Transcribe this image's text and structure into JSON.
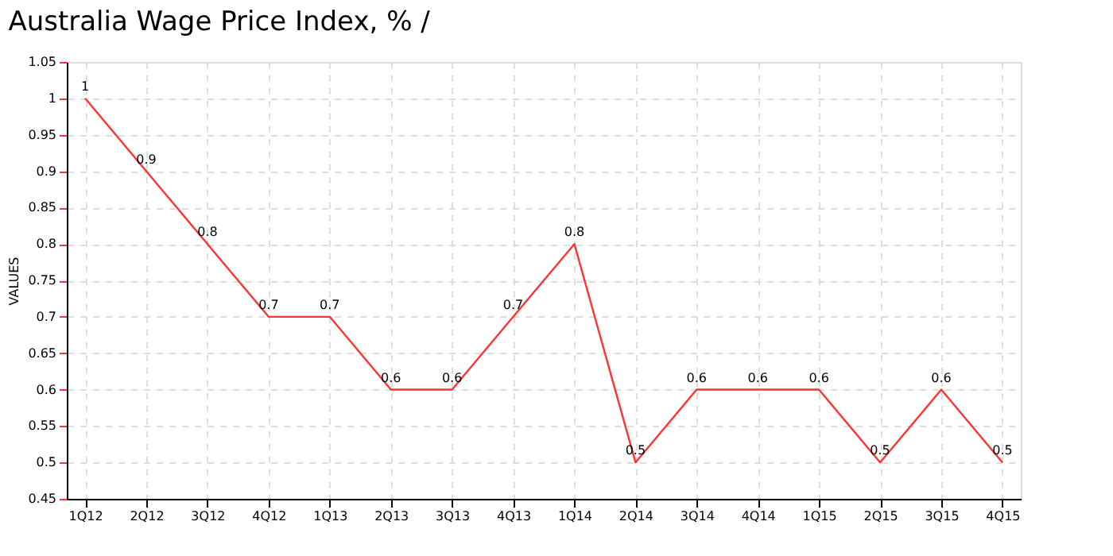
{
  "chart_data": {
    "type": "line",
    "title": "Australia Wage Price Index, %  /",
    "ylabel": "VALUES",
    "categories": [
      "1Q12",
      "2Q12",
      "3Q12",
      "4Q12",
      "1Q13",
      "2Q13",
      "3Q13",
      "4Q13",
      "1Q14",
      "2Q14",
      "3Q14",
      "4Q14",
      "1Q15",
      "2Q15",
      "3Q15",
      "4Q15"
    ],
    "series": [
      {
        "color": "#ff3333",
        "values": [
          1,
          0.9,
          0.8,
          0.7,
          0.7,
          0.6,
          0.6,
          0.7,
          0.8,
          0.5,
          0.6,
          0.6,
          0.6,
          0.5,
          0.6,
          0.5
        ]
      }
    ],
    "ylim": [
      0.45,
      1.05
    ],
    "yticks": [
      0.45,
      0.5,
      0.55,
      0.6,
      0.65,
      0.7,
      0.75,
      0.8,
      0.85,
      0.9,
      0.95,
      1,
      1.05
    ],
    "grid": true,
    "data_labels": true,
    "marker": "none",
    "line_style": "solid"
  }
}
